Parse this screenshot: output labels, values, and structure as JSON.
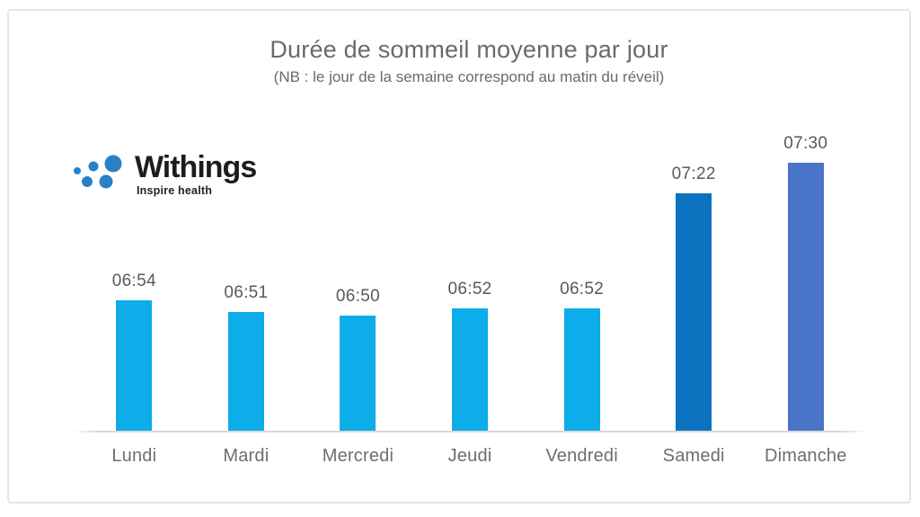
{
  "logo": {
    "brand": "Withings",
    "tagline": "Inspire health",
    "dot_color": "#2b80c4",
    "text_color": "#1d1d1d"
  },
  "chart_data": {
    "type": "bar",
    "title": "Durée de sommeil moyenne par jour",
    "subtitle": "(NB : le jour de la semaine correspond au matin du réveil)",
    "categories": [
      "Lundi",
      "Mardi",
      "Mercredi",
      "Jeudi",
      "Vendredi",
      "Samedi",
      "Dimanche"
    ],
    "values": [
      "06:54",
      "06:51",
      "06:50",
      "06:52",
      "06:52",
      "07:22",
      "07:30"
    ],
    "bar_colors": [
      "#0cade9",
      "#0cade9",
      "#0cade9",
      "#0cade9",
      "#0cade9",
      "#0b72c0",
      "#4a74c8"
    ],
    "xlabel": "",
    "ylabel": "",
    "ylim_minutes": [
      380,
      460
    ],
    "grid": false,
    "legend": false,
    "axis_line_color": "#d8d8d8",
    "value_label_color": "#595959",
    "category_label_color": "#6e6e6e"
  }
}
